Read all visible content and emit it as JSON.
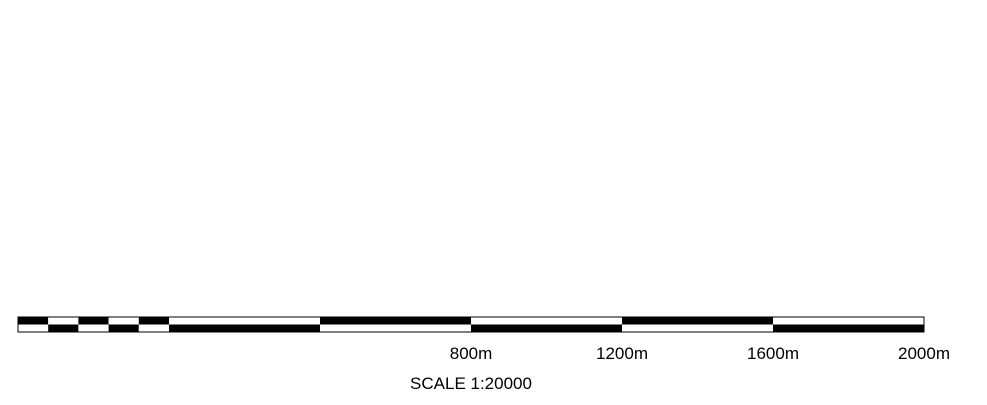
{
  "scale_bar": {
    "caption": "SCALE 1:20000",
    "unit": "m",
    "max_distance": 2000,
    "fine_segment_distance": 40,
    "fine_segment_count": 5,
    "coarse_segment_count": 5,
    "tick_labels": [
      {
        "distance": 800,
        "label": "800m"
      },
      {
        "distance": 1200,
        "label": "1200m"
      },
      {
        "distance": 1600,
        "label": "1600m"
      },
      {
        "distance": 2000,
        "label": "2000m"
      }
    ],
    "colors": {
      "dark": "#000000",
      "light": "#ffffff",
      "outline": "#000000"
    }
  }
}
